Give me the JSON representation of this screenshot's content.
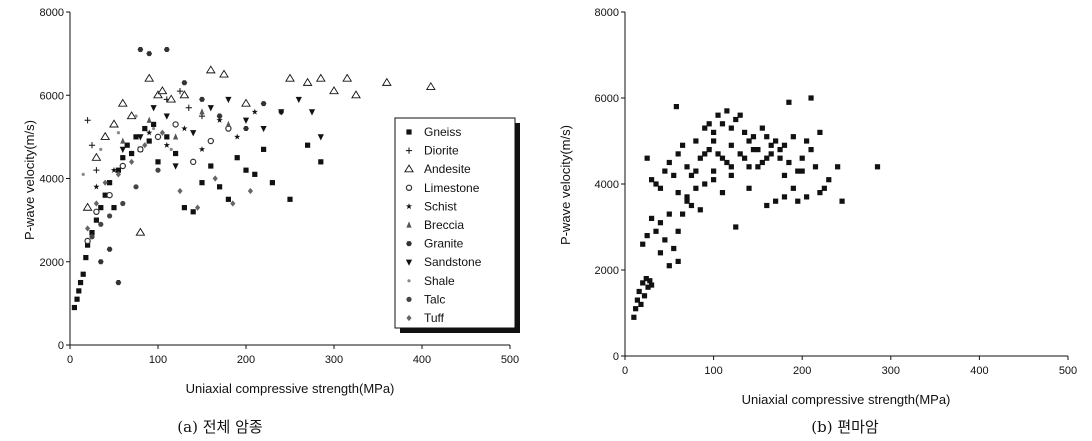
{
  "chart_data": [
    {
      "type": "scatter",
      "caption": "(a) 전체 암종",
      "xlabel": "Uniaxial compressive strength(MPa)",
      "ylabel": "P-wave velocity(m/s)",
      "xlim": [
        0,
        500
      ],
      "ylim": [
        0,
        8000
      ],
      "x_ticks": [
        "0",
        "100",
        "200",
        "300",
        "400",
        "500"
      ],
      "y_ticks": [
        "0",
        "2000",
        "4000",
        "6000",
        "8000"
      ],
      "grid": false,
      "legend_position": "right",
      "series": [
        {
          "name": "Gneiss",
          "marker": "square",
          "color": "#111111",
          "points": [
            [
              5,
              900
            ],
            [
              8,
              1100
            ],
            [
              10,
              1300
            ],
            [
              12,
              1500
            ],
            [
              15,
              1700
            ],
            [
              18,
              2100
            ],
            [
              20,
              2400
            ],
            [
              25,
              2700
            ],
            [
              30,
              3000
            ],
            [
              35,
              3300
            ],
            [
              40,
              3600
            ],
            [
              45,
              3900
            ],
            [
              50,
              3300
            ],
            [
              55,
              4200
            ],
            [
              60,
              4500
            ],
            [
              65,
              4800
            ],
            [
              70,
              4600
            ],
            [
              75,
              5000
            ],
            [
              80,
              4700
            ],
            [
              85,
              5200
            ],
            [
              90,
              4900
            ],
            [
              95,
              5300
            ],
            [
              100,
              4400
            ],
            [
              110,
              5000
            ],
            [
              120,
              4600
            ],
            [
              130,
              3300
            ],
            [
              140,
              3200
            ],
            [
              150,
              3900
            ],
            [
              160,
              4300
            ],
            [
              170,
              3800
            ],
            [
              180,
              3500
            ],
            [
              190,
              4500
            ],
            [
              200,
              4200
            ],
            [
              210,
              4100
            ],
            [
              220,
              4700
            ],
            [
              230,
              3900
            ],
            [
              250,
              3500
            ],
            [
              270,
              4800
            ],
            [
              285,
              4400
            ]
          ]
        },
        {
          "name": "Diorite",
          "marker": "plus",
          "color": "#111111",
          "points": [
            [
              20,
              5400
            ],
            [
              25,
              4800
            ],
            [
              30,
              4200
            ],
            [
              110,
              5900
            ],
            [
              125,
              6100
            ],
            [
              135,
              5700
            ],
            [
              150,
              5500
            ]
          ]
        },
        {
          "name": "Andesite",
          "marker": "triangle-open",
          "color": "#111111",
          "points": [
            [
              20,
              3300
            ],
            [
              30,
              4500
            ],
            [
              40,
              5000
            ],
            [
              50,
              5300
            ],
            [
              60,
              5800
            ],
            [
              70,
              5500
            ],
            [
              80,
              2700
            ],
            [
              90,
              6400
            ],
            [
              100,
              6000
            ],
            [
              105,
              6100
            ],
            [
              115,
              5900
            ],
            [
              130,
              6000
            ],
            [
              160,
              6600
            ],
            [
              175,
              6500
            ],
            [
              200,
              5800
            ],
            [
              250,
              6400
            ],
            [
              270,
              6300
            ],
            [
              285,
              6400
            ],
            [
              300,
              6100
            ],
            [
              315,
              6400
            ],
            [
              325,
              6000
            ],
            [
              360,
              6300
            ],
            [
              410,
              6200
            ]
          ]
        },
        {
          "name": "Limestone",
          "marker": "circle",
          "color": "#333333",
          "points": [
            [
              20,
              2500
            ],
            [
              30,
              3200
            ],
            [
              45,
              3600
            ],
            [
              60,
              4300
            ],
            [
              80,
              4700
            ],
            [
              100,
              5000
            ],
            [
              120,
              5300
            ],
            [
              140,
              4400
            ],
            [
              160,
              4900
            ],
            [
              180,
              5200
            ]
          ]
        },
        {
          "name": "Schist",
          "marker": "star",
          "color": "#111111",
          "points": [
            [
              30,
              3800
            ],
            [
              50,
              4200
            ],
            [
              70,
              4600
            ],
            [
              90,
              5100
            ],
            [
              110,
              4800
            ],
            [
              130,
              5200
            ],
            [
              150,
              4700
            ],
            [
              170,
              5400
            ],
            [
              190,
              5000
            ],
            [
              210,
              5600
            ]
          ]
        },
        {
          "name": "Breccia",
          "marker": "triangle",
          "color": "#555555",
          "points": [
            [
              60,
              4900
            ],
            [
              90,
              5400
            ],
            [
              120,
              5000
            ],
            [
              150,
              5600
            ],
            [
              180,
              5300
            ]
          ]
        },
        {
          "name": "Granite",
          "marker": "hexagon",
          "color": "#333333",
          "points": [
            [
              35,
              2000
            ],
            [
              45,
              2300
            ],
            [
              55,
              1500
            ],
            [
              80,
              7100
            ],
            [
              90,
              7000
            ],
            [
              110,
              7100
            ],
            [
              130,
              6300
            ],
            [
              150,
              5900
            ],
            [
              170,
              5500
            ],
            [
              200,
              5200
            ],
            [
              220,
              5800
            ],
            [
              240,
              5600
            ]
          ]
        },
        {
          "name": "Sandstone",
          "marker": "triangle-down",
          "color": "#111111",
          "points": [
            [
              60,
              4700
            ],
            [
              80,
              5000
            ],
            [
              95,
              5700
            ],
            [
              110,
              5500
            ],
            [
              120,
              4300
            ],
            [
              140,
              5100
            ],
            [
              160,
              5700
            ],
            [
              180,
              5900
            ],
            [
              200,
              5400
            ],
            [
              220,
              5200
            ],
            [
              240,
              5600
            ],
            [
              260,
              5900
            ],
            [
              275,
              5600
            ],
            [
              285,
              5000
            ]
          ]
        },
        {
          "name": "Shale",
          "marker": "dot",
          "color": "#888888",
          "points": [
            [
              15,
              4100
            ],
            [
              35,
              4700
            ],
            [
              55,
              5100
            ],
            [
              75,
              5500
            ],
            [
              95,
              5200
            ],
            [
              115,
              4700
            ]
          ]
        },
        {
          "name": "Talc",
          "marker": "circle-filled",
          "color": "#444444",
          "points": [
            [
              25,
              2600
            ],
            [
              35,
              2900
            ],
            [
              45,
              3100
            ],
            [
              60,
              3400
            ],
            [
              75,
              3800
            ],
            [
              100,
              4200
            ]
          ]
        },
        {
          "name": "Tuff",
          "marker": "diamond",
          "color": "#666666",
          "points": [
            [
              20,
              2800
            ],
            [
              30,
              3400
            ],
            [
              40,
              3900
            ],
            [
              55,
              4100
            ],
            [
              70,
              4400
            ],
            [
              85,
              4800
            ],
            [
              105,
              5100
            ],
            [
              125,
              3700
            ],
            [
              145,
              3300
            ],
            [
              165,
              4000
            ],
            [
              185,
              3400
            ],
            [
              205,
              3700
            ]
          ]
        }
      ]
    },
    {
      "type": "scatter",
      "caption": "(b) 편마암",
      "xlabel": "Uniaxial compressive strength(MPa)",
      "ylabel": "P-wave velocity(m/s)",
      "xlim": [
        0,
        500
      ],
      "ylim": [
        0,
        8000
      ],
      "x_ticks": [
        "0",
        "100",
        "200",
        "300",
        "400",
        "500"
      ],
      "y_ticks": [
        "0",
        "2000",
        "4000",
        "6000",
        "8000"
      ],
      "grid": false,
      "series": [
        {
          "marker": "square",
          "color": "#111111",
          "points": [
            [
              10,
              900
            ],
            [
              12,
              1100
            ],
            [
              14,
              1300
            ],
            [
              16,
              1500
            ],
            [
              18,
              1200
            ],
            [
              20,
              1700
            ],
            [
              22,
              1400
            ],
            [
              24,
              1800
            ],
            [
              26,
              1600
            ],
            [
              28,
              1750
            ],
            [
              30,
              1650
            ],
            [
              20,
              2600
            ],
            [
              25,
              2800
            ],
            [
              30,
              3200
            ],
            [
              35,
              2900
            ],
            [
              40,
              3100
            ],
            [
              45,
              2700
            ],
            [
              50,
              3300
            ],
            [
              55,
              2500
            ],
            [
              60,
              2900
            ],
            [
              25,
              4600
            ],
            [
              30,
              4100
            ],
            [
              35,
              4000
            ],
            [
              40,
              3900
            ],
            [
              45,
              4300
            ],
            [
              50,
              4500
            ],
            [
              55,
              4200
            ],
            [
              58,
              5800
            ],
            [
              60,
              4700
            ],
            [
              65,
              4900
            ],
            [
              70,
              4400
            ],
            [
              75,
              4200
            ],
            [
              80,
              5000
            ],
            [
              85,
              4600
            ],
            [
              90,
              5300
            ],
            [
              95,
              5400
            ],
            [
              100,
              5200
            ],
            [
              105,
              5600
            ],
            [
              110,
              5400
            ],
            [
              115,
              5700
            ],
            [
              120,
              5300
            ],
            [
              125,
              5500
            ],
            [
              130,
              5600
            ],
            [
              135,
              5200
            ],
            [
              140,
              5000
            ],
            [
              145,
              5100
            ],
            [
              150,
              4800
            ],
            [
              155,
              5300
            ],
            [
              160,
              5100
            ],
            [
              165,
              4700
            ],
            [
              170,
              5000
            ],
            [
              175,
              4600
            ],
            [
              180,
              4900
            ],
            [
              185,
              4500
            ],
            [
              190,
              5100
            ],
            [
              195,
              4300
            ],
            [
              200,
              4600
            ],
            [
              205,
              5000
            ],
            [
              210,
              6000
            ],
            [
              215,
              4400
            ],
            [
              220,
              5200
            ],
            [
              225,
              3900
            ],
            [
              230,
              4100
            ],
            [
              240,
              4400
            ],
            [
              245,
              3600
            ],
            [
              285,
              4400
            ],
            [
              70,
              3700
            ],
            [
              80,
              3900
            ],
            [
              90,
              4000
            ],
            [
              100,
              4300
            ],
            [
              110,
              3800
            ],
            [
              120,
              4200
            ],
            [
              125,
              3000
            ],
            [
              140,
              3900
            ],
            [
              160,
              3500
            ],
            [
              170,
              3600
            ],
            [
              180,
              3700
            ],
            [
              185,
              5900
            ],
            [
              195,
              3600
            ],
            [
              205,
              3700
            ],
            [
              190,
              3900
            ],
            [
              65,
              3300
            ],
            [
              75,
              3500
            ],
            [
              85,
              3400
            ],
            [
              95,
              4800
            ],
            [
              105,
              4700
            ],
            [
              115,
              4500
            ],
            [
              130,
              4700
            ],
            [
              150,
              4400
            ],
            [
              210,
              4800
            ],
            [
              220,
              3800
            ],
            [
              60,
              2200
            ],
            [
              70,
              3600
            ],
            [
              50,
              2100
            ],
            [
              40,
              2400
            ],
            [
              100,
              5000
            ],
            [
              110,
              4600
            ],
            [
              120,
              4900
            ],
            [
              135,
              4600
            ],
            [
              145,
              4800
            ],
            [
              155,
              4500
            ],
            [
              165,
              4900
            ],
            [
              175,
              4800
            ],
            [
              90,
              4700
            ],
            [
              80,
              4300
            ],
            [
              60,
              3800
            ],
            [
              100,
              4100
            ],
            [
              120,
              4400
            ],
            [
              140,
              4400
            ],
            [
              160,
              4600
            ],
            [
              180,
              4200
            ],
            [
              200,
              4300
            ]
          ]
        }
      ]
    }
  ]
}
